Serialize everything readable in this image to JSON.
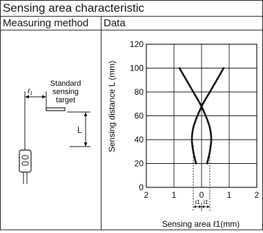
{
  "title": "Sensing area characteristic",
  "columns": {
    "method": "Measuring method",
    "data": "Data"
  },
  "diagram": {
    "target_label_lines": [
      "Standard",
      "sensing",
      "target"
    ],
    "distance_label": "L",
    "offset_label": "ℓ",
    "offset_sub": "1"
  },
  "chart_data": {
    "type": "line",
    "xlabel": "Sensing area ℓ1(mm)",
    "ylabel": "Sensing distance L (mm)",
    "xlim": [
      -2,
      2
    ],
    "ylim": [
      0,
      120
    ],
    "x_ticks": [
      -2,
      -1,
      0,
      1,
      2
    ],
    "x_tick_labels": [
      "2",
      "1",
      "0",
      "1",
      "2"
    ],
    "y_ticks": [
      0,
      20,
      40,
      60,
      80,
      100,
      120
    ],
    "y_tick_labels": [
      "0",
      "20",
      "40",
      "60",
      "80",
      "100",
      "120"
    ],
    "grid": true,
    "offset_marks": {
      "label": "ℓ1",
      "x": [
        -0.3,
        0.3
      ],
      "y_top": 35
    },
    "series": [
      {
        "values": [
          [
            -0.8,
            100
          ],
          [
            -0.55,
            90
          ],
          [
            -0.3,
            80
          ],
          [
            -0.05,
            70
          ],
          [
            0.15,
            60
          ],
          [
            0.3,
            50
          ],
          [
            0.35,
            40
          ],
          [
            0.3,
            30
          ],
          [
            0.2,
            20
          ]
        ]
      },
      {
        "values": [
          [
            0.8,
            100
          ],
          [
            0.55,
            90
          ],
          [
            0.3,
            80
          ],
          [
            0.05,
            70
          ],
          [
            -0.15,
            60
          ],
          [
            -0.3,
            50
          ],
          [
            -0.35,
            40
          ],
          [
            -0.3,
            30
          ],
          [
            -0.2,
            20
          ]
        ]
      }
    ]
  }
}
